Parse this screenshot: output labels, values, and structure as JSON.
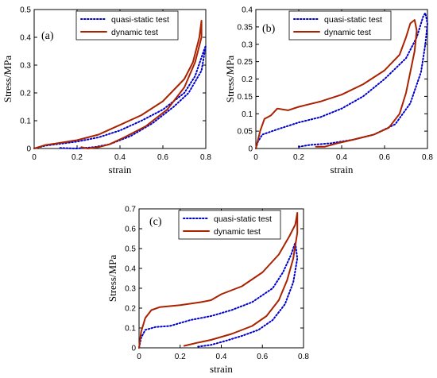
{
  "chart_data": [
    {
      "type": "line",
      "panel_tag": "(a)",
      "xlabel": "strain",
      "ylabel": "Stress/MPa",
      "xlim": [
        0,
        0.8
      ],
      "ylim": [
        0,
        0.5
      ],
      "x_ticks": [
        "0",
        "0.2",
        "0.4",
        "0.6",
        "0.8"
      ],
      "y_ticks": [
        "0",
        "0.1",
        "0.2",
        "0.3",
        "0.4",
        "0.5"
      ],
      "x_tick_values": [
        0,
        0.2,
        0.4,
        0.6,
        0.8
      ],
      "y_tick_values": [
        0,
        0.1,
        0.2,
        0.3,
        0.4,
        0.5
      ],
      "grid": false,
      "legend_position": "top-center",
      "series": [
        {
          "name": "quasi-static test",
          "color": "#0000cc",
          "style": "dotted",
          "points": [
            [
              0,
              0
            ],
            [
              0.05,
              0.01
            ],
            [
              0.1,
              0.015
            ],
            [
              0.2,
              0.025
            ],
            [
              0.3,
              0.04
            ],
            [
              0.4,
              0.065
            ],
            [
              0.5,
              0.1
            ],
            [
              0.6,
              0.14
            ],
            [
              0.7,
              0.2
            ],
            [
              0.75,
              0.26
            ],
            [
              0.79,
              0.35
            ],
            [
              0.8,
              0.37
            ],
            [
              0.78,
              0.28
            ],
            [
              0.72,
              0.2
            ],
            [
              0.65,
              0.15
            ],
            [
              0.55,
              0.09
            ],
            [
              0.45,
              0.045
            ],
            [
              0.35,
              0.015
            ],
            [
              0.28,
              0.005
            ],
            [
              0.2,
              0.0
            ],
            [
              0.12,
              0.002
            ]
          ]
        },
        {
          "name": "dynamic test",
          "color": "#aa2200",
          "style": "solid",
          "points": [
            [
              0,
              0
            ],
            [
              0.05,
              0.012
            ],
            [
              0.1,
              0.018
            ],
            [
              0.2,
              0.03
            ],
            [
              0.3,
              0.05
            ],
            [
              0.4,
              0.085
            ],
            [
              0.5,
              0.12
            ],
            [
              0.6,
              0.17
            ],
            [
              0.7,
              0.25
            ],
            [
              0.74,
              0.31
            ],
            [
              0.77,
              0.4
            ],
            [
              0.78,
              0.46
            ],
            [
              0.78,
              0.4
            ],
            [
              0.75,
              0.31
            ],
            [
              0.7,
              0.22
            ],
            [
              0.62,
              0.14
            ],
            [
              0.52,
              0.08
            ],
            [
              0.42,
              0.04
            ],
            [
              0.35,
              0.015
            ],
            [
              0.3,
              0.005
            ],
            [
              0.25,
              0.0
            ],
            [
              0.22,
              0.005
            ]
          ]
        }
      ]
    },
    {
      "type": "line",
      "panel_tag": "(b)",
      "xlabel": "strain",
      "ylabel": "Stress/MPa",
      "xlim": [
        0,
        0.8
      ],
      "ylim": [
        0,
        0.4
      ],
      "x_ticks": [
        "0",
        "0.2",
        "0.4",
        "0.6",
        "0.8"
      ],
      "y_ticks": [
        "0",
        "0.05",
        "0.1",
        "0.15",
        "0.2",
        "0.25",
        "0.3",
        "0.35",
        "0.4"
      ],
      "x_tick_values": [
        0,
        0.2,
        0.4,
        0.6,
        0.8
      ],
      "y_tick_values": [
        0,
        0.05,
        0.1,
        0.15,
        0.2,
        0.25,
        0.3,
        0.35,
        0.4
      ],
      "grid": false,
      "legend_position": "top-center",
      "series": [
        {
          "name": "quasi-static test",
          "color": "#0000cc",
          "style": "dotted",
          "points": [
            [
              0,
              0
            ],
            [
              0.01,
              0.02
            ],
            [
              0.03,
              0.04
            ],
            [
              0.1,
              0.055
            ],
            [
              0.2,
              0.075
            ],
            [
              0.3,
              0.09
            ],
            [
              0.4,
              0.115
            ],
            [
              0.5,
              0.15
            ],
            [
              0.6,
              0.2
            ],
            [
              0.7,
              0.26
            ],
            [
              0.75,
              0.32
            ],
            [
              0.78,
              0.38
            ],
            [
              0.79,
              0.39
            ],
            [
              0.8,
              0.36
            ],
            [
              0.79,
              0.3
            ],
            [
              0.77,
              0.22
            ],
            [
              0.72,
              0.13
            ],
            [
              0.65,
              0.07
            ],
            [
              0.55,
              0.04
            ],
            [
              0.45,
              0.025
            ],
            [
              0.35,
              0.015
            ],
            [
              0.25,
              0.01
            ],
            [
              0.2,
              0.005
            ]
          ]
        },
        {
          "name": "dynamic test",
          "color": "#aa2200",
          "style": "solid",
          "points": [
            [
              0,
              0
            ],
            [
              0.02,
              0.05
            ],
            [
              0.04,
              0.085
            ],
            [
              0.07,
              0.095
            ],
            [
              0.1,
              0.115
            ],
            [
              0.15,
              0.11
            ],
            [
              0.2,
              0.12
            ],
            [
              0.3,
              0.135
            ],
            [
              0.4,
              0.155
            ],
            [
              0.5,
              0.185
            ],
            [
              0.6,
              0.225
            ],
            [
              0.67,
              0.27
            ],
            [
              0.7,
              0.32
            ],
            [
              0.72,
              0.36
            ],
            [
              0.74,
              0.37
            ],
            [
              0.75,
              0.34
            ],
            [
              0.74,
              0.28
            ],
            [
              0.72,
              0.22
            ],
            [
              0.7,
              0.16
            ],
            [
              0.67,
              0.1
            ],
            [
              0.62,
              0.06
            ],
            [
              0.55,
              0.04
            ],
            [
              0.45,
              0.025
            ],
            [
              0.38,
              0.015
            ],
            [
              0.32,
              0.005
            ],
            [
              0.28,
              0.005
            ]
          ]
        }
      ]
    },
    {
      "type": "line",
      "panel_tag": "(c)",
      "xlabel": "strain",
      "ylabel": "Stress/MPa",
      "xlim": [
        0,
        0.8
      ],
      "ylim": [
        0,
        0.7
      ],
      "x_ticks": [
        "0",
        "0.2",
        "0.4",
        "0.6",
        "0.8"
      ],
      "y_ticks": [
        "0",
        "0.1",
        "0.2",
        "0.3",
        "0.4",
        "0.5",
        "0.6",
        "0.7"
      ],
      "x_tick_values": [
        0,
        0.2,
        0.4,
        0.6,
        0.8
      ],
      "y_tick_values": [
        0,
        0.1,
        0.2,
        0.3,
        0.4,
        0.5,
        0.6,
        0.7
      ],
      "grid": false,
      "legend_position": "top-center",
      "series": [
        {
          "name": "quasi-static test",
          "color": "#0000cc",
          "style": "dotted",
          "points": [
            [
              0,
              0
            ],
            [
              0.01,
              0.05
            ],
            [
              0.03,
              0.09
            ],
            [
              0.08,
              0.105
            ],
            [
              0.15,
              0.11
            ],
            [
              0.25,
              0.14
            ],
            [
              0.35,
              0.16
            ],
            [
              0.45,
              0.19
            ],
            [
              0.55,
              0.23
            ],
            [
              0.65,
              0.3
            ],
            [
              0.7,
              0.38
            ],
            [
              0.74,
              0.47
            ],
            [
              0.76,
              0.53
            ],
            [
              0.77,
              0.45
            ],
            [
              0.75,
              0.33
            ],
            [
              0.71,
              0.22
            ],
            [
              0.65,
              0.14
            ],
            [
              0.58,
              0.09
            ],
            [
              0.5,
              0.06
            ],
            [
              0.42,
              0.035
            ],
            [
              0.35,
              0.015
            ],
            [
              0.28,
              0.005
            ]
          ]
        },
        {
          "name": "dynamic test",
          "color": "#aa2200",
          "style": "solid",
          "points": [
            [
              0,
              0
            ],
            [
              0.01,
              0.08
            ],
            [
              0.03,
              0.15
            ],
            [
              0.06,
              0.19
            ],
            [
              0.1,
              0.205
            ],
            [
              0.2,
              0.215
            ],
            [
              0.3,
              0.23
            ],
            [
              0.35,
              0.24
            ],
            [
              0.4,
              0.27
            ],
            [
              0.5,
              0.31
            ],
            [
              0.6,
              0.38
            ],
            [
              0.68,
              0.47
            ],
            [
              0.73,
              0.56
            ],
            [
              0.76,
              0.62
            ],
            [
              0.77,
              0.68
            ],
            [
              0.77,
              0.58
            ],
            [
              0.75,
              0.45
            ],
            [
              0.72,
              0.34
            ],
            [
              0.68,
              0.24
            ],
            [
              0.62,
              0.16
            ],
            [
              0.55,
              0.11
            ],
            [
              0.45,
              0.07
            ],
            [
              0.35,
              0.04
            ],
            [
              0.28,
              0.025
            ],
            [
              0.22,
              0.01
            ]
          ]
        }
      ]
    }
  ]
}
